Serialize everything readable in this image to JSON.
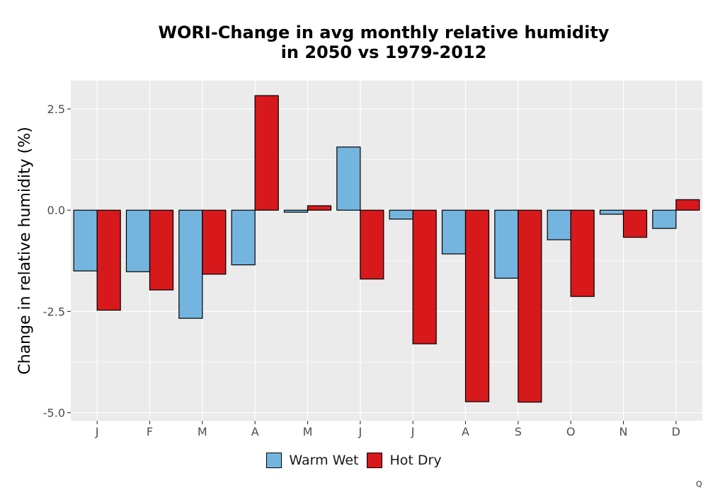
{
  "chart_data": {
    "type": "bar",
    "title_lines": [
      "WORI-Change in avg monthly relative humidity",
      "in 2050 vs 1979-2012"
    ],
    "xlabel": "",
    "ylabel": "Change in relative humidity (%)",
    "categories": [
      "J",
      "F",
      "M",
      "A",
      "M",
      "J",
      "J",
      "A",
      "S",
      "O",
      "N",
      "D"
    ],
    "ylim": [
      -5.2,
      3.2
    ],
    "yticks": [
      -5.0,
      -2.5,
      0.0,
      2.5
    ],
    "ytick_labels": [
      "-5.0",
      "-2.5",
      "0.0",
      "2.5"
    ],
    "grid": true,
    "legend_position": "bottom",
    "series": [
      {
        "name": "Warm Wet",
        "color": "#74b5e0",
        "values": [
          -1.5,
          -1.52,
          -2.67,
          -1.35,
          -0.05,
          1.56,
          -0.22,
          -1.08,
          -1.68,
          -0.73,
          -0.1,
          -0.45
        ]
      },
      {
        "name": "Hot Dry",
        "color": "#d7191c",
        "values": [
          -2.47,
          -1.97,
          -1.58,
          2.83,
          0.11,
          -1.7,
          -3.3,
          -4.73,
          -4.74,
          -2.13,
          -0.67,
          0.26
        ]
      }
    ]
  },
  "corner_mark": "Q"
}
